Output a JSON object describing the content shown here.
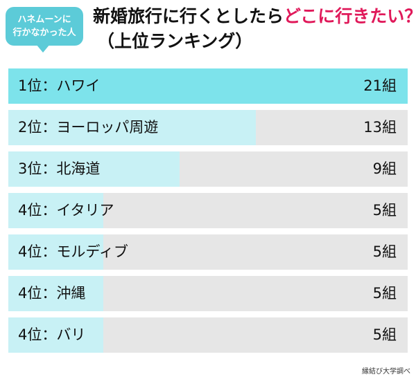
{
  "badge": {
    "line1": "ハネムーンに",
    "line2": "行かなかった人"
  },
  "title": {
    "main": "新婚旅行に行くとしたら",
    "accent": "どこに行きたい？",
    "sub": "（上位ランキング）"
  },
  "colors": {
    "bar_top": "#7de3eb",
    "bar": "#c8f1f5",
    "track": "#e6e6e6",
    "accent": "#e0195a",
    "badge": "#5ccbd8"
  },
  "chart_data": {
    "type": "bar",
    "orientation": "horizontal",
    "unit": "組",
    "max": 21,
    "categories": [
      "ハワイ",
      "ヨーロッパ周遊",
      "北海道",
      "イタリア",
      "モルディブ",
      "沖縄",
      "バリ"
    ],
    "ranks": [
      "1位",
      "2位",
      "3位",
      "4位",
      "4位",
      "4位",
      "4位"
    ],
    "values": [
      21,
      13,
      9,
      5,
      5,
      5,
      5
    ],
    "labels": [
      "1位：ハワイ",
      "2位：ヨーロッパ周遊",
      "3位：北海道",
      "4位：イタリア",
      "4位：モルディブ",
      "4位：沖縄",
      "4位：バリ"
    ],
    "value_labels": [
      "21組",
      "13組",
      "9組",
      "5組",
      "5組",
      "5組",
      "5組"
    ]
  },
  "source": "縁結び大学調べ"
}
